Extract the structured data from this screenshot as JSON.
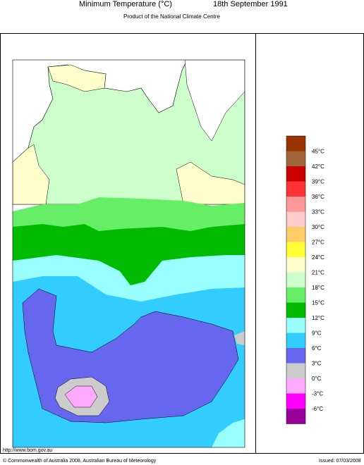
{
  "header": {
    "title": "Minimum Temperature (°C)",
    "date": "18th September 1991",
    "subtitle": "Product of the National Climate Centre"
  },
  "legend": {
    "colors": [
      "#993300",
      "#a0663a",
      "#cc0000",
      "#ff3333",
      "#ff9999",
      "#ffcccc",
      "#ffcc66",
      "#ffff33",
      "#ffffcc",
      "#ccffcc",
      "#66ee66",
      "#00bb00",
      "#99ffff",
      "#33ccff",
      "#6666ee",
      "#cccccc",
      "#ffaaff",
      "#ff00ff",
      "#990099"
    ],
    "labels": [
      "45°C",
      "42°C",
      "39°C",
      "36°C",
      "33°C",
      "30°C",
      "27°C",
      "24°C",
      "21°C",
      "18°C",
      "15°C",
      "12°C",
      "9°C",
      "6°C",
      "3°C",
      "0°C",
      "-3°C",
      "-6°C"
    ]
  },
  "footer": {
    "url": "http://www.bom.gov.au",
    "copyright": "© Commonwealth of Australia 2008, Australian Bureau of Meteorology",
    "issued": "Issued: 07/03/2008"
  }
}
